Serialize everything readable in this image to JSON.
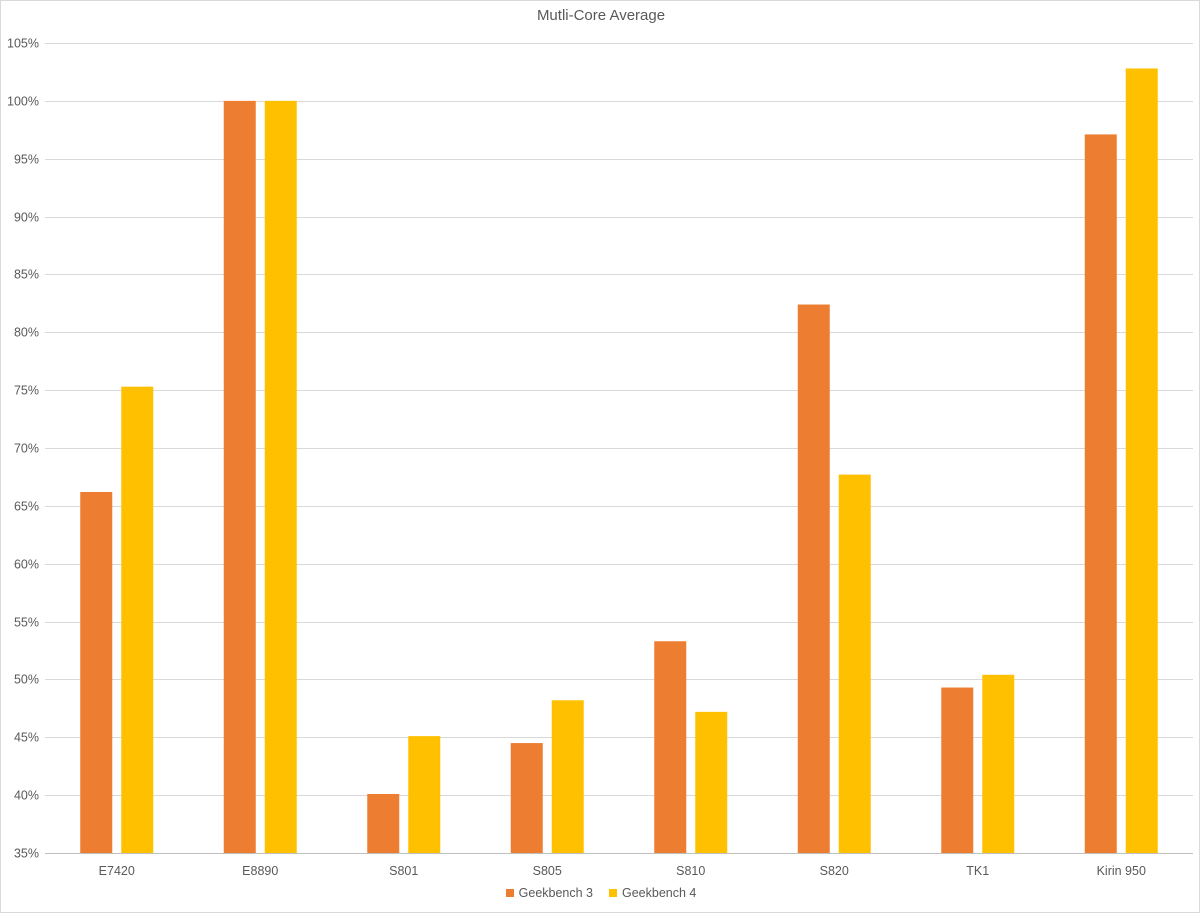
{
  "chart_data": {
    "type": "bar",
    "title": "Mutli-Core Average",
    "categories": [
      "E7420",
      "E8890",
      "S801",
      "S805",
      "S810",
      "S820",
      "TK1",
      "Kirin 950"
    ],
    "series": [
      {
        "name": "Geekbench 3",
        "color": "#ED7D31",
        "values": [
          66.2,
          100,
          40.1,
          44.5,
          53.3,
          82.4,
          49.3,
          97.1
        ]
      },
      {
        "name": "Geekbench 4",
        "color": "#FFC000",
        "values": [
          75.3,
          100,
          45.1,
          48.2,
          47.2,
          67.7,
          50.4,
          102.8
        ]
      }
    ],
    "ylim": [
      35,
      105
    ],
    "ytick_step": 5,
    "ytick_labels": [
      "35%",
      "40%",
      "45%",
      "50%",
      "55%",
      "60%",
      "65%",
      "70%",
      "75%",
      "80%",
      "85%",
      "90%",
      "95%",
      "100%",
      "105%"
    ],
    "xlabel": "",
    "ylabel": "",
    "grid": true,
    "legend_position": "bottom"
  }
}
